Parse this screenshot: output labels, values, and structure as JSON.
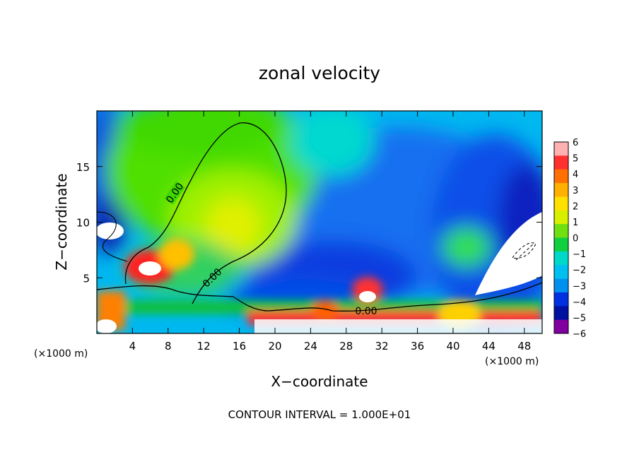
{
  "chart_data": {
    "type": "heatmap",
    "title": "zonal velocity",
    "xlabel": "X−coordinate",
    "ylabel": "Z−coordinate",
    "x_unit_left": "(×1000 m)",
    "x_unit_right": "(×1000 m)",
    "xlim": [
      0,
      50
    ],
    "ylim": [
      0,
      20
    ],
    "x_ticks": [
      4,
      8,
      12,
      16,
      20,
      24,
      28,
      32,
      36,
      40,
      44,
      48
    ],
    "x_tick_labels": [
      "4",
      "8",
      "12",
      "16",
      "20",
      "24",
      "28",
      "32",
      "36",
      "40",
      "44",
      "48"
    ],
    "y_ticks": [
      5,
      10,
      15
    ],
    "y_tick_labels": [
      "5",
      "10",
      "15"
    ],
    "colorbar": {
      "levels": [
        6,
        5,
        4,
        3,
        2,
        1,
        0,
        -1,
        -2,
        -3,
        -4,
        -5,
        -6
      ],
      "labels": [
        "6",
        "5",
        "4",
        "3",
        "2",
        "1",
        "0",
        "−1",
        "−2",
        "−3",
        "−4",
        "−5",
        "−6"
      ],
      "colors": [
        "#ffb0b0",
        "#ff3030",
        "#ff7000",
        "#ffb000",
        "#ffe000",
        "#d8f000",
        "#70e010",
        "#10d040",
        "#00d8c8",
        "#00c0f0",
        "#0090f0",
        "#0030e0",
        "#0010a0",
        "#8000a0"
      ]
    },
    "features": [
      {
        "type": "contour_label",
        "text": "0.00",
        "x": 8.5,
        "y": 11.8
      },
      {
        "type": "contour_label",
        "text": "0.00",
        "x": 13.2,
        "y": 4.3
      },
      {
        "type": "contour_label",
        "text": "0.00",
        "x": 30.5,
        "y": 1.9
      }
    ],
    "annotation": "CONTOUR INTERVAL = 1.000E+01"
  }
}
